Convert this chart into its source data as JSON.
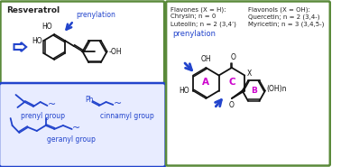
{
  "bg_color": "#ffffff",
  "green_border": "#5a8a3a",
  "blue_border": "#2244cc",
  "blue_color": "#2244cc",
  "magenta_color": "#cc00cc",
  "dark_text": "#222222",
  "bond_color": "#111111",
  "title_resveratrol": "Resveratrol",
  "prenylation_text": "prenylation",
  "prenyl_label": "prenyl group",
  "cinnamyl_label": "cinnamyl group",
  "geranyl_label": "geranyl group",
  "flavones_line1": "Flavones (X = H):",
  "flavones_line2": "Chrysin; n = 0",
  "flavones_line3": "Luteolin; n = 2 (3,4’)",
  "flavonols_line1": "Flavonols (X = OH):",
  "flavonols_line2": "Quercetin; n = 2 (3,4-)",
  "flavonols_line3": "Myricetin; n = 3 (3,4,5-)",
  "ring_A": "A",
  "ring_C": "C",
  "ring_B": "B",
  "oh_label": "OH",
  "o_label": "O",
  "x_label": "X",
  "ho_label": "HO",
  "ohn_label": "(OH)n"
}
